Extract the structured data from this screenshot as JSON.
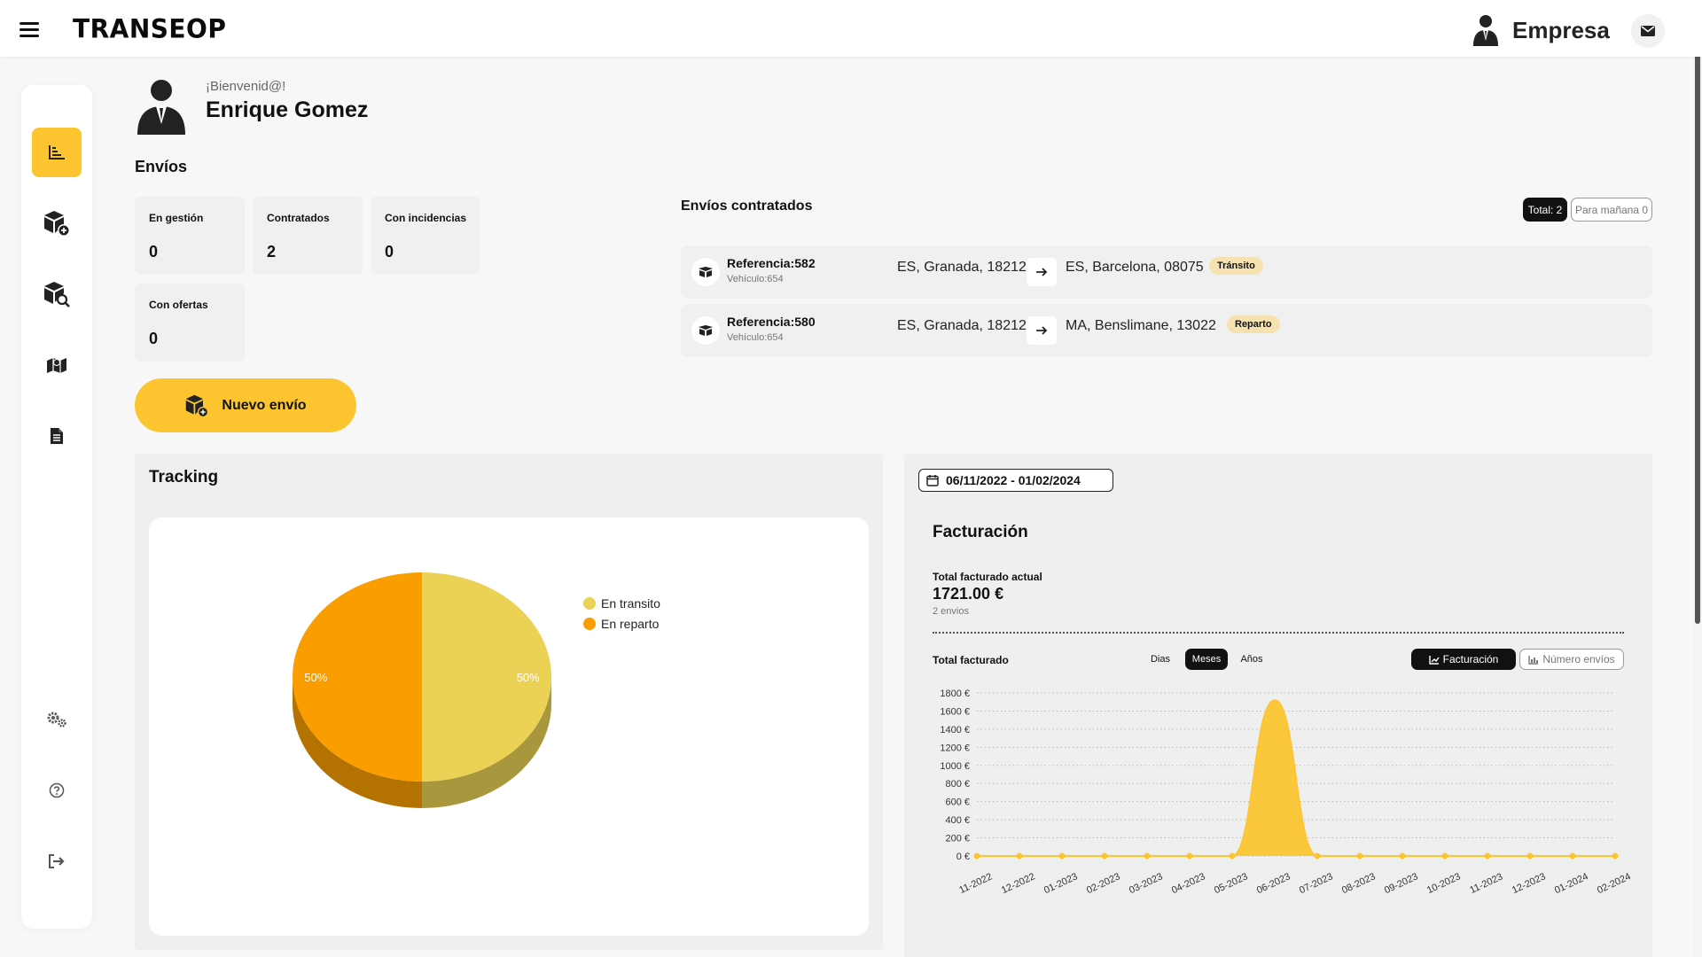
{
  "header": {
    "logo": "TRANSEOP",
    "user_type": "Empresa"
  },
  "sidebar": {
    "items": [
      {
        "name": "dashboard",
        "icon": "chart-icon",
        "active": true
      },
      {
        "name": "new-shipment",
        "icon": "box-plus-icon"
      },
      {
        "name": "search-shipment",
        "icon": "box-search-icon"
      },
      {
        "name": "map",
        "icon": "map-icon"
      },
      {
        "name": "documents",
        "icon": "document-icon"
      },
      {
        "name": "settings",
        "icon": "gears-icon"
      },
      {
        "name": "help",
        "icon": "help-icon"
      },
      {
        "name": "logout",
        "icon": "logout-icon"
      }
    ]
  },
  "profile": {
    "welcome": "¡Bienvenid@!",
    "name": "Enrique Gomez"
  },
  "envios": {
    "title": "Envíos",
    "stats": [
      {
        "label": "En gestión",
        "value": "0"
      },
      {
        "label": "Contratados",
        "value": "2"
      },
      {
        "label": "Con incidencias",
        "value": "0"
      },
      {
        "label": "Con ofertas",
        "value": "0"
      }
    ],
    "new_button": "Nuevo envío"
  },
  "contratados": {
    "title": "Envíos contratados",
    "total_pill": "Total: 2",
    "manana_pill": "Para mañana 0",
    "shipments": [
      {
        "ref": "Referencia:582",
        "vehicle": "Vehículo:654",
        "from": "ES, Granada, 18212",
        "to": "ES, Barcelona, 08075",
        "status": "Tránsito"
      },
      {
        "ref": "Referencia:580",
        "vehicle": "Vehículo:654",
        "from": "ES, Granada, 18212",
        "to": "MA, Benslimane, 13022",
        "status": "Reparto"
      }
    ]
  },
  "tracking": {
    "title": "Tracking",
    "chart_data": {
      "type": "pie",
      "slices": [
        {
          "label": "En transito",
          "value": 50,
          "color": "#ebd255",
          "label_text": "50%"
        },
        {
          "label": "En reparto",
          "value": 50,
          "color": "#fa9e00",
          "label_text": "50%"
        }
      ],
      "legend": "right"
    }
  },
  "facturacion": {
    "date_range": "06/11/2022 - 01/02/2024",
    "title": "Facturación",
    "total_actual_label": "Total facturado actual",
    "total_actual_value": "1721.00 €",
    "total_actual_sub": "2 envios",
    "total_label": "Total facturado",
    "period_tabs": [
      "Dias",
      "Meses",
      "Años"
    ],
    "active_period": "Meses",
    "chart_btn_1": "Facturación",
    "chart_btn_2": "Número envíos",
    "chart_data": {
      "type": "area",
      "x": [
        "11-2022",
        "12-2022",
        "01-2023",
        "02-2023",
        "03-2023",
        "04-2023",
        "05-2023",
        "06-2023",
        "07-2023",
        "08-2023",
        "09-2023",
        "10-2023",
        "11-2023",
        "12-2023",
        "01-2024",
        "02-2024"
      ],
      "values": [
        0,
        0,
        0,
        0,
        0,
        0,
        0,
        1721,
        0,
        0,
        0,
        0,
        0,
        0,
        0,
        0
      ],
      "y_ticks": [
        "0 €",
        "200 €",
        "400 €",
        "600 €",
        "800 €",
        "1000 €",
        "1200 €",
        "1400 €",
        "1600 €",
        "1800 €"
      ],
      "ylim": [
        0,
        1800
      ],
      "grid": true,
      "color": "#fcc530"
    }
  }
}
